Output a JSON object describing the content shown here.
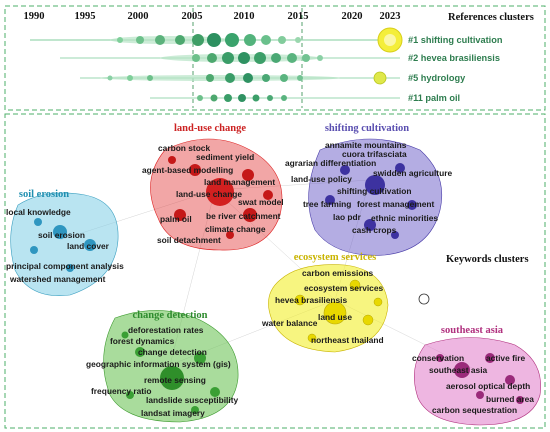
{
  "timeline": {
    "section_label": "References clusters",
    "years": [
      "1990",
      "1995",
      "2000",
      "2005",
      "2010",
      "2015",
      "2020",
      "2023"
    ],
    "clusters": [
      {
        "label": "#1 shifting cultivation"
      },
      {
        "label": "#2 hevea brasiliensis"
      },
      {
        "label": "#5 hydrology"
      },
      {
        "label": "#11 palm oil"
      }
    ]
  },
  "keywords": {
    "section_label": "Keywords clusters",
    "clusters": [
      {
        "title": "land-use change",
        "color": "#cc2222",
        "terms": [
          "carbon stock",
          "sediment yield",
          "agent-based modelling",
          "land management",
          "land-use change",
          "swat model",
          "palm oil",
          "be river catchment",
          "climate change",
          "soil detachment"
        ]
      },
      {
        "title": "shifting cultivation",
        "color": "#5a4fb0",
        "terms": [
          "annamite mountains",
          "cuora trifasciata",
          "agrarian differentiation",
          "swidden agriculture",
          "land-use policy",
          "shifting cultivation",
          "tree farming",
          "forest management",
          "lao pdr",
          "ethnic minorities",
          "cash crops"
        ]
      },
      {
        "title": "soil erosion",
        "color": "#1f8fb0",
        "terms": [
          "local knowledge",
          "soil erosion",
          "land cover",
          "principal component analysis",
          "watershed management"
        ]
      },
      {
        "title": "ecosystem services",
        "color": "#c9b400",
        "terms": [
          "carbon emissions",
          "ecosystem services",
          "hevea brasiliensis",
          "land use",
          "water balance",
          "northeast thailand"
        ]
      },
      {
        "title": "change detection",
        "color": "#2e8b2e",
        "terms": [
          "deforestation rates",
          "forest dynamics",
          "change detection",
          "geographic information system (gis)",
          "remote sensing",
          "frequency ratio",
          "landslide susceptibility",
          "landsat imagery"
        ]
      },
      {
        "title": "southeast asia",
        "color": "#b0307e",
        "terms": [
          "conservation",
          "active fire",
          "southeast asia",
          "aerosol optical depth",
          "burned area",
          "carbon sequestration"
        ]
      }
    ]
  }
}
